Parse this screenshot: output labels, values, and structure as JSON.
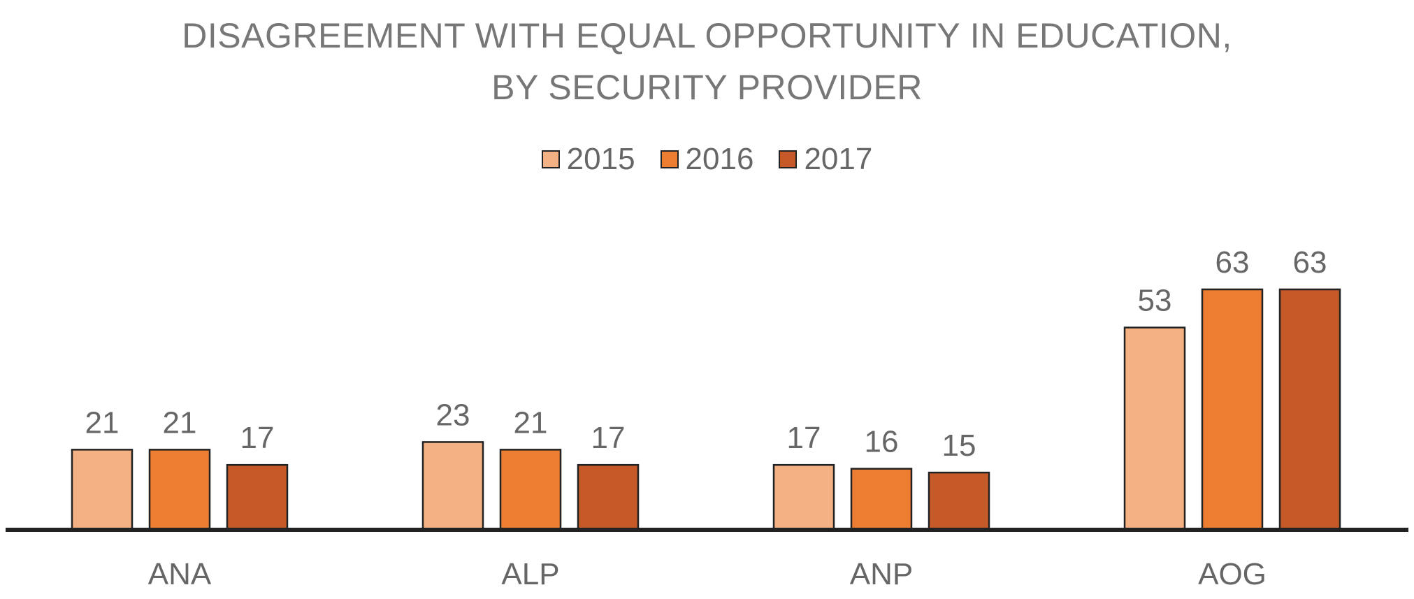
{
  "chart_data": {
    "type": "bar",
    "title_lines": [
      "DISAGREEMENT WITH EQUAL OPPORTUNITY IN EDUCATION,",
      "BY SECURITY PROVIDER"
    ],
    "categories": [
      "ANA",
      "ALP",
      "ANP",
      "AOG"
    ],
    "series": [
      {
        "name": "2015",
        "values": [
          21,
          23,
          17,
          53
        ],
        "color": "#F4B183"
      },
      {
        "name": "2016",
        "values": [
          21,
          21,
          16,
          63
        ],
        "color": "#ED7D31"
      },
      {
        "name": "2017",
        "values": [
          17,
          17,
          15,
          63
        ],
        "color": "#C55A28"
      }
    ],
    "data_labels": true,
    "legend_position": "top-center",
    "grid": false,
    "ylim": [
      0,
      63
    ]
  }
}
